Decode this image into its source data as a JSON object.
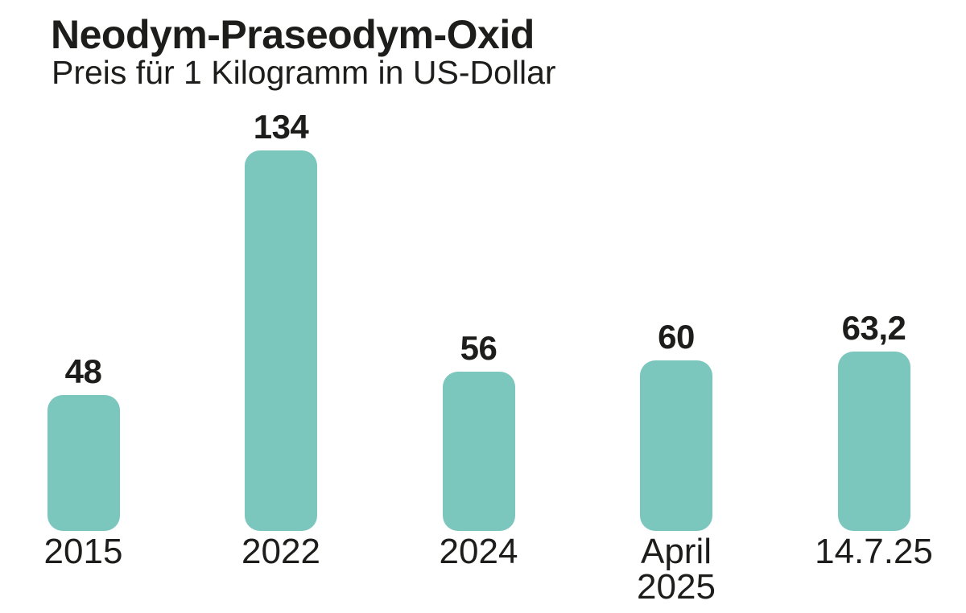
{
  "header": {
    "title": "Neodym-Praseodym-Oxid",
    "subtitle": "Preis für 1 Kilogramm in US-Dollar"
  },
  "chart_data": {
    "type": "bar",
    "title": "Neodym-Praseodym-Oxid",
    "subtitle": "Preis für 1 Kilogramm in US-Dollar",
    "categories": [
      "2015",
      "2022",
      "2024",
      "April\n2025",
      "14.7.25"
    ],
    "values": [
      48,
      134,
      56,
      60,
      63.2
    ],
    "value_labels": [
      "48",
      "134",
      "56",
      "60",
      "63,2"
    ],
    "xlabel": "",
    "ylabel": "",
    "ylim": [
      0,
      134
    ],
    "grid": false,
    "axes_visible": false,
    "legend": "none",
    "bar_color": "#7bc6bd",
    "text_color": "#1d1d1b",
    "background_color": "#ffffff"
  }
}
